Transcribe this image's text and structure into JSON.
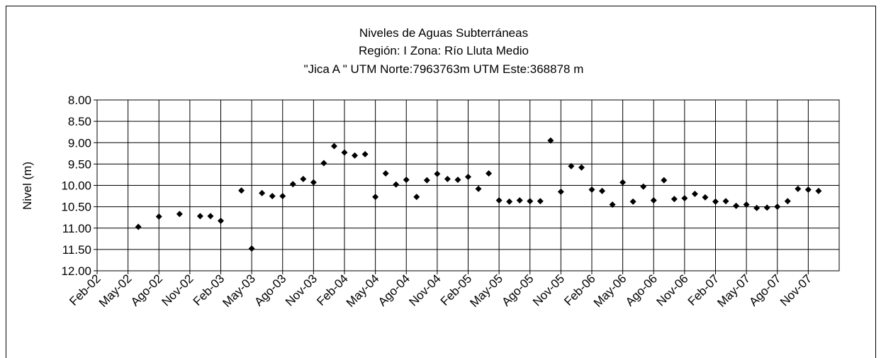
{
  "chart_data": {
    "type": "scatter",
    "title": [
      "Niveles de Aguas Subterráneas",
      "Región: I  Zona: Río Lluta Medio",
      "\"Jica A \" UTM Norte:7963763m  UTM Este:368878 m"
    ],
    "y_label": "Nivel (m)",
    "x": [
      "2002-06",
      "2002-08",
      "2002-10",
      "2002-12",
      "2003-01",
      "2003-02",
      "2003-04",
      "2003-05",
      "2003-06",
      "2003-07",
      "2003-08",
      "2003-09",
      "2003-10",
      "2003-11",
      "2003-12",
      "2004-01",
      "2004-02",
      "2004-03",
      "2004-04",
      "2004-05",
      "2004-06",
      "2004-07",
      "2004-08",
      "2004-09",
      "2004-10",
      "2004-11",
      "2004-12",
      "2005-01",
      "2005-02",
      "2005-03",
      "2005-04",
      "2005-05",
      "2005-06",
      "2005-07",
      "2005-08",
      "2005-09",
      "2005-10",
      "2005-11",
      "2005-12",
      "2006-01",
      "2006-02",
      "2006-03",
      "2006-04",
      "2006-05",
      "2006-06",
      "2006-07",
      "2006-08",
      "2006-09",
      "2006-10",
      "2006-11",
      "2006-12",
      "2007-01",
      "2007-02",
      "2007-03",
      "2007-04",
      "2007-05",
      "2007-06",
      "2007-07",
      "2007-08",
      "2007-09",
      "2007-10",
      "2007-11",
      "2007-12"
    ],
    "values": [
      10.97,
      10.73,
      10.67,
      10.72,
      10.72,
      10.83,
      10.12,
      11.48,
      10.18,
      10.25,
      10.25,
      9.97,
      9.85,
      9.93,
      9.48,
      9.08,
      9.23,
      9.3,
      9.27,
      10.27,
      9.72,
      9.98,
      9.87,
      10.27,
      9.88,
      9.73,
      9.85,
      9.87,
      9.8,
      10.08,
      9.72,
      10.35,
      10.38,
      10.35,
      10.37,
      10.37,
      8.95,
      10.15,
      9.55,
      9.58,
      10.1,
      10.13,
      10.45,
      9.93,
      10.38,
      10.03,
      10.35,
      9.88,
      10.32,
      10.3,
      10.2,
      10.28,
      10.38,
      10.37,
      10.48,
      10.45,
      10.53,
      10.52,
      10.5,
      10.37,
      10.08,
      10.1,
      10.13
    ],
    "color": "#000000",
    "xlim": [
      "2002-02",
      "2008-02"
    ],
    "xticks": [
      {
        "value": "2002-02",
        "label": "Feb-02"
      },
      {
        "value": "2002-05",
        "label": "May-02"
      },
      {
        "value": "2002-08",
        "label": "Ago-02"
      },
      {
        "value": "2002-11",
        "label": "Nov-02"
      },
      {
        "value": "2003-02",
        "label": "Feb-03"
      },
      {
        "value": "2003-05",
        "label": "May-03"
      },
      {
        "value": "2003-08",
        "label": "Ago-03"
      },
      {
        "value": "2003-11",
        "label": "Nov-03"
      },
      {
        "value": "2004-02",
        "label": "Feb-04"
      },
      {
        "value": "2004-05",
        "label": "May-04"
      },
      {
        "value": "2004-08",
        "label": "Ago-04"
      },
      {
        "value": "2004-11",
        "label": "Nov-04"
      },
      {
        "value": "2005-02",
        "label": "Feb-05"
      },
      {
        "value": "2005-05",
        "label": "May-05"
      },
      {
        "value": "2005-08",
        "label": "Ago-05"
      },
      {
        "value": "2005-11",
        "label": "Nov-05"
      },
      {
        "value": "2006-02",
        "label": "Feb-06"
      },
      {
        "value": "2006-05",
        "label": "May-06"
      },
      {
        "value": "2006-08",
        "label": "Ago-06"
      },
      {
        "value": "2006-11",
        "label": "Nov-06"
      },
      {
        "value": "2007-02",
        "label": "Feb-07"
      },
      {
        "value": "2007-05",
        "label": "May-07"
      },
      {
        "value": "2007-08",
        "label": "Ago-07"
      },
      {
        "value": "2007-11",
        "label": "Nov-07"
      }
    ],
    "ylim": [
      8,
      12
    ],
    "y_reversed": true,
    "yticks": [
      {
        "value": 8,
        "label": "8.00"
      },
      {
        "value": 8.5,
        "label": "8.50"
      },
      {
        "value": 9,
        "label": "9.00"
      },
      {
        "value": 9.5,
        "label": "9.50"
      },
      {
        "value": 10,
        "label": "10.00"
      },
      {
        "value": 10.5,
        "label": "10.50"
      },
      {
        "value": 11,
        "label": "11.00"
      },
      {
        "value": 11.5,
        "label": "11.50"
      },
      {
        "value": 12,
        "label": "12.00"
      }
    ],
    "grid": true
  }
}
